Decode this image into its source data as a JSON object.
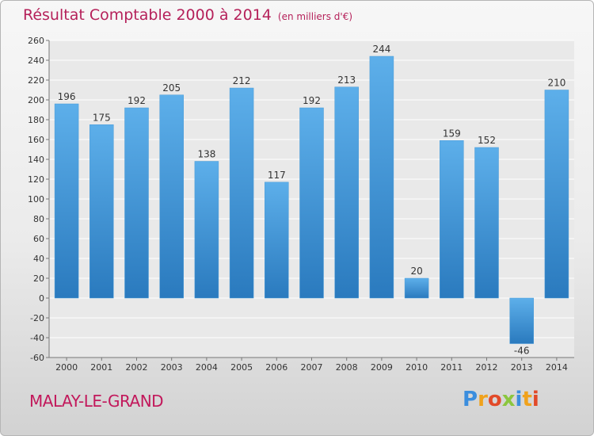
{
  "title": "Résultat Comptable 2000 à 2014",
  "subtitle": "(en milliers d'€)",
  "town": "MALAY-LE-GRAND",
  "logo": {
    "letters": [
      "P",
      "r",
      "o",
      "x",
      "i",
      "t",
      "i"
    ],
    "colors": [
      "#3b8ede",
      "#f0a21c",
      "#e24a29",
      "#8bc63e",
      "#3b8ede",
      "#f0a21c",
      "#e24a29"
    ]
  },
  "colors": {
    "bar_top": "#5dafea",
    "bar_bottom": "#2a7abe",
    "title": "#b5215a"
  },
  "chart_data": {
    "type": "bar",
    "categories": [
      "2000",
      "2001",
      "2002",
      "2003",
      "2004",
      "2005",
      "2006",
      "2007",
      "2008",
      "2009",
      "2010",
      "2011",
      "2012",
      "2013",
      "2014"
    ],
    "values": [
      196,
      175,
      192,
      205,
      138,
      212,
      117,
      192,
      213,
      244,
      20,
      159,
      152,
      -46,
      210
    ],
    "ylim": [
      -60,
      260
    ],
    "yticks": [
      -60,
      -40,
      -20,
      0,
      20,
      40,
      60,
      80,
      100,
      120,
      140,
      160,
      180,
      200,
      220,
      240,
      260
    ],
    "grid": true,
    "xlabel": "",
    "ylabel": ""
  }
}
